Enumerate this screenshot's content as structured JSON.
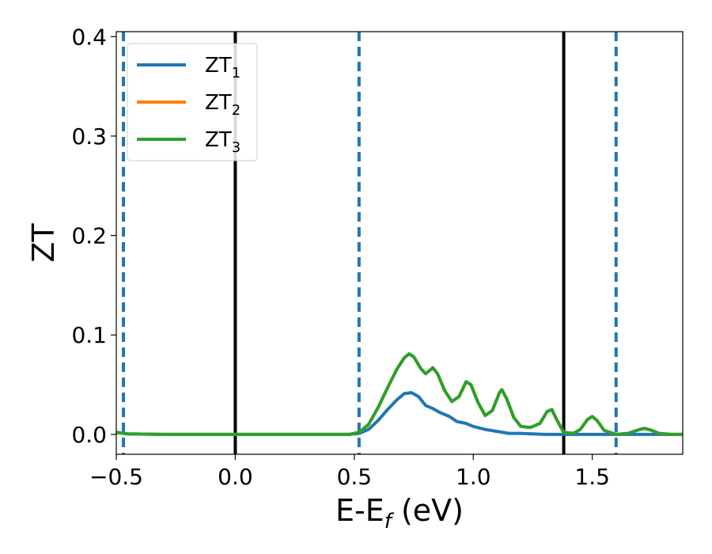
{
  "chart_data": {
    "type": "line",
    "xlabel": {
      "main": "E-E",
      "sub": "f",
      "tail": " (eV)"
    },
    "ylabel": "ZT",
    "xlim": [
      -0.5,
      1.88
    ],
    "ylim": [
      -0.02,
      0.405
    ],
    "x_ticks": [
      {
        "value": -0.5,
        "label": "−0.5"
      },
      {
        "value": 0.0,
        "label": "0.0"
      },
      {
        "value": 0.5,
        "label": "0.5"
      },
      {
        "value": 1.0,
        "label": "1.0"
      },
      {
        "value": 1.5,
        "label": "1.5"
      }
    ],
    "y_ticks": [
      {
        "value": 0.0,
        "label": "0.0"
      },
      {
        "value": 0.1,
        "label": "0.1"
      },
      {
        "value": 0.2,
        "label": "0.2"
      },
      {
        "value": 0.3,
        "label": "0.3"
      },
      {
        "value": 0.4,
        "label": "0.4"
      }
    ],
    "vlines_solid": [
      0.0,
      1.38
    ],
    "vlines_dashed": [
      -0.47,
      0.52,
      1.6
    ],
    "legend_position": "top-left",
    "series": [
      {
        "name": "ZT",
        "name_sub": "1",
        "color": "#1f77b4",
        "points": [
          [
            -0.5,
            0.002
          ],
          [
            -0.45,
            0.0005
          ],
          [
            -0.3,
            0.0
          ],
          [
            0.0,
            0.0
          ],
          [
            0.3,
            0.0
          ],
          [
            0.48,
            0.0
          ],
          [
            0.52,
            0.001
          ],
          [
            0.56,
            0.005
          ],
          [
            0.6,
            0.014
          ],
          [
            0.64,
            0.025
          ],
          [
            0.68,
            0.035
          ],
          [
            0.71,
            0.041
          ],
          [
            0.74,
            0.042
          ],
          [
            0.77,
            0.038
          ],
          [
            0.8,
            0.029
          ],
          [
            0.83,
            0.026
          ],
          [
            0.86,
            0.022
          ],
          [
            0.9,
            0.018
          ],
          [
            0.93,
            0.013
          ],
          [
            0.97,
            0.011
          ],
          [
            1.0,
            0.008
          ],
          [
            1.05,
            0.005
          ],
          [
            1.1,
            0.003
          ],
          [
            1.15,
            0.001
          ],
          [
            1.2,
            0.001
          ],
          [
            1.3,
            0.0
          ],
          [
            1.5,
            0.0
          ],
          [
            1.88,
            0.0
          ]
        ]
      },
      {
        "name": "ZT",
        "name_sub": "2",
        "color": "#ff7f0e",
        "points": [
          [
            -0.5,
            0.002
          ],
          [
            -0.45,
            0.0005
          ],
          [
            -0.3,
            0.0
          ],
          [
            0.0,
            0.0
          ],
          [
            0.3,
            0.0
          ],
          [
            0.48,
            0.0
          ],
          [
            0.52,
            0.002
          ],
          [
            0.56,
            0.01
          ],
          [
            0.6,
            0.027
          ],
          [
            0.64,
            0.047
          ],
          [
            0.68,
            0.066
          ],
          [
            0.71,
            0.077
          ],
          [
            0.73,
            0.081
          ],
          [
            0.75,
            0.078
          ],
          [
            0.78,
            0.066
          ],
          [
            0.8,
            0.061
          ],
          [
            0.83,
            0.067
          ],
          [
            0.85,
            0.061
          ],
          [
            0.88,
            0.044
          ],
          [
            0.91,
            0.033
          ],
          [
            0.94,
            0.038
          ],
          [
            0.97,
            0.053
          ],
          [
            0.99,
            0.05
          ],
          [
            1.02,
            0.032
          ],
          [
            1.05,
            0.019
          ],
          [
            1.08,
            0.024
          ],
          [
            1.11,
            0.042
          ],
          [
            1.12,
            0.045
          ],
          [
            1.14,
            0.036
          ],
          [
            1.17,
            0.017
          ],
          [
            1.2,
            0.008
          ],
          [
            1.24,
            0.007
          ],
          [
            1.28,
            0.011
          ],
          [
            1.31,
            0.023
          ],
          [
            1.33,
            0.025
          ],
          [
            1.35,
            0.015
          ],
          [
            1.38,
            0.002
          ],
          [
            1.42,
            0.001
          ],
          [
            1.45,
            0.005
          ],
          [
            1.48,
            0.015
          ],
          [
            1.5,
            0.018
          ],
          [
            1.52,
            0.014
          ],
          [
            1.55,
            0.004
          ],
          [
            1.6,
            0.0
          ],
          [
            1.65,
            0.001
          ],
          [
            1.7,
            0.005
          ],
          [
            1.72,
            0.006
          ],
          [
            1.75,
            0.004
          ],
          [
            1.78,
            0.001
          ],
          [
            1.83,
            0.0
          ],
          [
            1.88,
            0.0
          ]
        ]
      },
      {
        "name": "ZT",
        "name_sub": "3",
        "color": "#2ca02c",
        "points": [
          [
            -0.5,
            0.002
          ],
          [
            -0.45,
            0.0005
          ],
          [
            -0.3,
            0.0
          ],
          [
            0.0,
            0.0
          ],
          [
            0.3,
            0.0
          ],
          [
            0.48,
            0.0
          ],
          [
            0.52,
            0.002
          ],
          [
            0.56,
            0.01
          ],
          [
            0.6,
            0.027
          ],
          [
            0.64,
            0.047
          ],
          [
            0.68,
            0.066
          ],
          [
            0.71,
            0.077
          ],
          [
            0.73,
            0.081
          ],
          [
            0.75,
            0.078
          ],
          [
            0.78,
            0.066
          ],
          [
            0.8,
            0.061
          ],
          [
            0.83,
            0.067
          ],
          [
            0.85,
            0.061
          ],
          [
            0.88,
            0.044
          ],
          [
            0.91,
            0.033
          ],
          [
            0.94,
            0.038
          ],
          [
            0.97,
            0.053
          ],
          [
            0.99,
            0.05
          ],
          [
            1.02,
            0.032
          ],
          [
            1.05,
            0.019
          ],
          [
            1.08,
            0.024
          ],
          [
            1.11,
            0.042
          ],
          [
            1.12,
            0.045
          ],
          [
            1.14,
            0.036
          ],
          [
            1.17,
            0.017
          ],
          [
            1.2,
            0.008
          ],
          [
            1.24,
            0.007
          ],
          [
            1.28,
            0.011
          ],
          [
            1.31,
            0.023
          ],
          [
            1.33,
            0.025
          ],
          [
            1.35,
            0.015
          ],
          [
            1.38,
            0.002
          ],
          [
            1.42,
            0.001
          ],
          [
            1.45,
            0.005
          ],
          [
            1.48,
            0.015
          ],
          [
            1.5,
            0.018
          ],
          [
            1.52,
            0.014
          ],
          [
            1.55,
            0.004
          ],
          [
            1.6,
            0.0
          ],
          [
            1.65,
            0.001
          ],
          [
            1.7,
            0.005
          ],
          [
            1.72,
            0.006
          ],
          [
            1.75,
            0.004
          ],
          [
            1.78,
            0.001
          ],
          [
            1.83,
            0.0
          ],
          [
            1.88,
            0.0
          ]
        ]
      }
    ]
  }
}
